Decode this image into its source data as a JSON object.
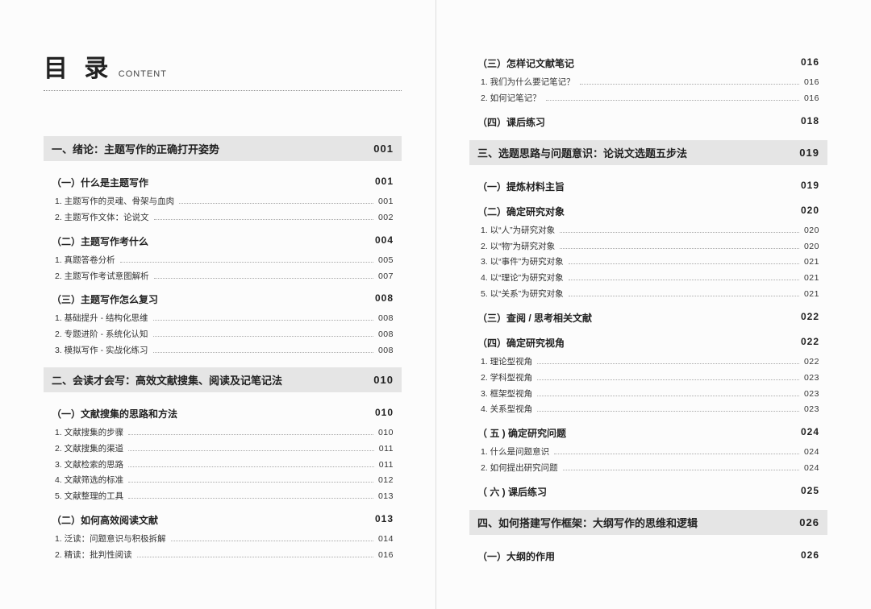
{
  "title": {
    "cn": "目 录",
    "en": "CONTENT"
  },
  "left": [
    {
      "type": "chapter",
      "t": "一、绪论：主题写作的正确打开姿势",
      "p": "001"
    },
    {
      "type": "section",
      "t": "（一）什么是主题写作",
      "p": "001"
    },
    {
      "type": "item",
      "t": "1. 主题写作的灵魂、骨架与血肉",
      "p": "001"
    },
    {
      "type": "item",
      "t": "2. 主题写作文体：论说文",
      "p": "002"
    },
    {
      "type": "section",
      "t": "（二）主题写作考什么",
      "p": "004"
    },
    {
      "type": "item",
      "t": "1. 真题答卷分析",
      "p": "005"
    },
    {
      "type": "item",
      "t": "2. 主题写作考试意图解析",
      "p": "007"
    },
    {
      "type": "section",
      "t": "（三）主题写作怎么复习",
      "p": "008"
    },
    {
      "type": "item",
      "t": "1. 基础提升 - 结构化思维",
      "p": "008"
    },
    {
      "type": "item",
      "t": "2. 专题进阶 - 系统化认知",
      "p": "008"
    },
    {
      "type": "item",
      "t": "3. 模拟写作 - 实战化练习",
      "p": "008"
    },
    {
      "type": "chapter",
      "t": "二、会读才会写：高效文献搜集、阅读及记笔记法",
      "p": "010"
    },
    {
      "type": "section",
      "t": "（一）文献搜集的思路和方法",
      "p": "010"
    },
    {
      "type": "item",
      "t": "1. 文献搜集的步骤",
      "p": "010"
    },
    {
      "type": "item",
      "t": "2. 文献搜集的渠道",
      "p": "011"
    },
    {
      "type": "item",
      "t": "3. 文献检索的思路",
      "p": "011"
    },
    {
      "type": "item",
      "t": "4. 文献筛选的标准",
      "p": "012"
    },
    {
      "type": "item",
      "t": "5. 文献整理的工具",
      "p": "013"
    },
    {
      "type": "section",
      "t": "（二）如何高效阅读文献",
      "p": "013"
    },
    {
      "type": "item",
      "t": "1. 泛读：问题意识与积极拆解",
      "p": "014"
    },
    {
      "type": "item",
      "t": "2. 精读：批判性阅读",
      "p": "016"
    }
  ],
  "right": [
    {
      "type": "section",
      "t": "（三）怎样记文献笔记",
      "p": "016"
    },
    {
      "type": "item",
      "t": "1. 我们为什么要记笔记？",
      "p": "016"
    },
    {
      "type": "item",
      "t": "2. 如何记笔记？",
      "p": "016"
    },
    {
      "type": "section",
      "t": "（四）课后练习",
      "p": "018"
    },
    {
      "type": "chapter",
      "t": "三、选题思路与问题意识：论说文选题五步法",
      "p": "019"
    },
    {
      "type": "section",
      "t": "（一）提炼材料主旨",
      "p": "019"
    },
    {
      "type": "section",
      "t": "（二）确定研究对象",
      "p": "020"
    },
    {
      "type": "item",
      "t": "1. 以“人”为研究对象",
      "p": "020"
    },
    {
      "type": "item",
      "t": "2. 以“物”为研究对象",
      "p": "020"
    },
    {
      "type": "item",
      "t": "3. 以“事件”为研究对象",
      "p": "021"
    },
    {
      "type": "item",
      "t": "4. 以“理论”为研究对象",
      "p": "021"
    },
    {
      "type": "item",
      "t": "5. 以“关系”为研究对象",
      "p": "021"
    },
    {
      "type": "section",
      "t": "（三）查阅 / 思考相关文献",
      "p": "022"
    },
    {
      "type": "section",
      "t": "（四）确定研究视角",
      "p": "022"
    },
    {
      "type": "item",
      "t": "1. 理论型视角",
      "p": "022"
    },
    {
      "type": "item",
      "t": "2. 学科型视角",
      "p": "023"
    },
    {
      "type": "item",
      "t": "3. 框架型视角",
      "p": "023"
    },
    {
      "type": "item",
      "t": "4. 关系型视角",
      "p": "023"
    },
    {
      "type": "section",
      "t": "（ 五 ) 确定研究问题",
      "p": "024"
    },
    {
      "type": "item",
      "t": "1. 什么是问题意识",
      "p": "024"
    },
    {
      "type": "item",
      "t": "2. 如何提出研究问题",
      "p": "024"
    },
    {
      "type": "section",
      "t": "（ 六 ) 课后练习",
      "p": "025"
    },
    {
      "type": "chapter",
      "t": "四、如何搭建写作框架：大纲写作的思维和逻辑",
      "p": "026"
    },
    {
      "type": "section",
      "t": "（一）大纲的作用",
      "p": "026"
    }
  ]
}
